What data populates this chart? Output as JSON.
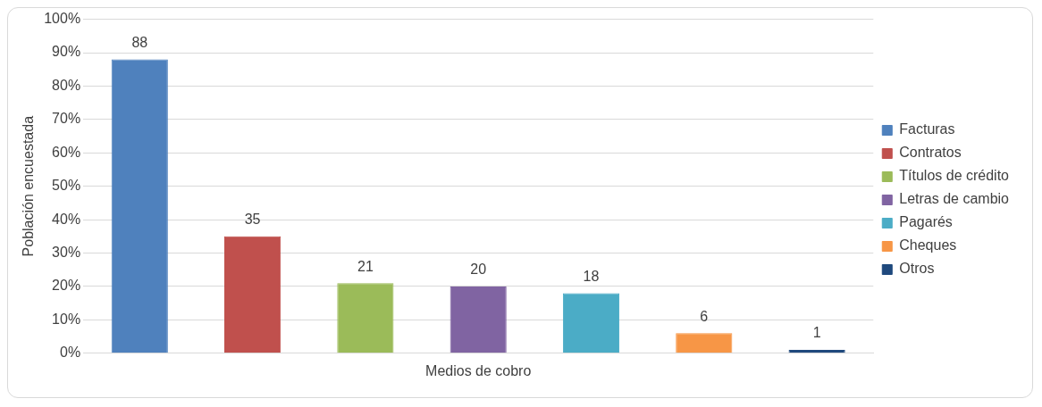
{
  "chart_data": {
    "type": "bar",
    "categories": [
      "Medios de cobro"
    ],
    "ylabel": "Población encuestada",
    "series": [
      {
        "name": "Facturas",
        "color": "#4f81bd",
        "values": [
          88
        ]
      },
      {
        "name": "Contratos",
        "color": "#c0504d",
        "values": [
          35
        ]
      },
      {
        "name": "Títulos de crédito",
        "color": "#9bbb59",
        "values": [
          21
        ]
      },
      {
        "name": "Letras de cambio",
        "color": "#8064a2",
        "values": [
          20
        ]
      },
      {
        "name": "Pagarés",
        "color": "#4bacc6",
        "values": [
          18
        ]
      },
      {
        "name": "Cheques",
        "color": "#f79646",
        "values": [
          6
        ]
      },
      {
        "name": "Otros",
        "color": "#1f497d",
        "values": [
          1
        ]
      }
    ],
    "ylim": [
      0,
      100
    ],
    "yticks": [
      {
        "value": 0,
        "label": "0%"
      },
      {
        "value": 10,
        "label": "10%"
      },
      {
        "value": 20,
        "label": "20%"
      },
      {
        "value": 30,
        "label": "30%"
      },
      {
        "value": 40,
        "label": "40%"
      },
      {
        "value": 50,
        "label": "50%"
      },
      {
        "value": 60,
        "label": "60%"
      },
      {
        "value": 70,
        "label": "70%"
      },
      {
        "value": 80,
        "label": "80%"
      },
      {
        "value": 90,
        "label": "90%"
      },
      {
        "value": 100,
        "label": "100%"
      }
    ],
    "grid": "y",
    "legend": "right",
    "data_labels": true
  }
}
